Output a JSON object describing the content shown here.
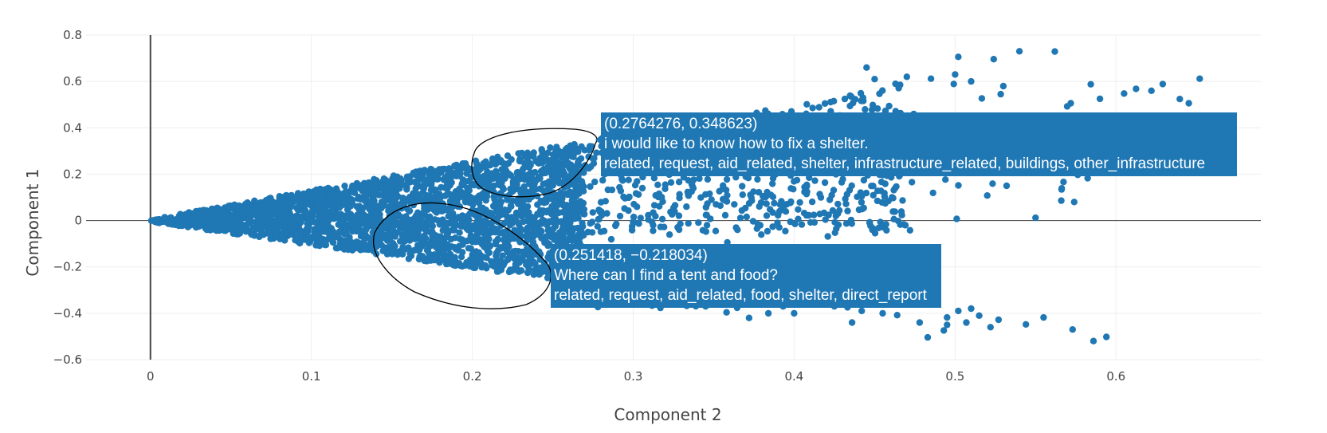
{
  "chart_data": {
    "type": "scatter",
    "xlabel": "Component 2",
    "ylabel": "Component 1",
    "xlim": [
      -0.04,
      0.69
    ],
    "ylim": [
      -0.6,
      0.8
    ],
    "x_ticks": [
      0,
      0.1,
      0.2,
      0.3,
      0.4,
      0.5,
      0.6
    ],
    "x_tick_labels": [
      "0",
      "0.1",
      "0.2",
      "0.3",
      "0.4",
      "0.5",
      "0.6"
    ],
    "y_ticks": [
      -0.6,
      -0.4,
      -0.2,
      0,
      0.2,
      0.4,
      0.6,
      0.8
    ],
    "y_tick_labels": [
      "−0.6",
      "−0.4",
      "−0.2",
      "0",
      "0.2",
      "0.4",
      "0.6",
      "0.8"
    ],
    "grid": true,
    "marker_color": "#1f77b4",
    "annotation_color": "#000000",
    "points_outlier_sample": [
      [
        0.502,
        0.706
      ],
      [
        0.524,
        0.696
      ],
      [
        0.54,
        0.73
      ],
      [
        0.562,
        0.729
      ],
      [
        0.652,
        0.612
      ],
      [
        0.605,
        0.548
      ],
      [
        0.622,
        0.56
      ],
      [
        0.59,
        0.525
      ],
      [
        0.53,
        0.58
      ],
      [
        0.5,
        0.63
      ],
      [
        0.485,
        0.612
      ],
      [
        0.51,
        0.6
      ],
      [
        0.47,
        0.62
      ],
      [
        0.45,
        0.61
      ],
      [
        0.463,
        0.59
      ],
      [
        0.445,
        0.66
      ],
      [
        0.566,
        0.086
      ],
      [
        0.574,
        0.08
      ],
      [
        0.55,
        0.012
      ],
      [
        0.501,
        0.007
      ],
      [
        0.472,
        -0.042
      ],
      [
        0.52,
        0.108
      ],
      [
        0.532,
        0.15
      ],
      [
        0.594,
        -0.502
      ],
      [
        0.586,
        -0.52
      ],
      [
        0.573,
        -0.47
      ],
      [
        0.555,
        -0.418
      ],
      [
        0.544,
        -0.448
      ],
      [
        0.522,
        -0.46
      ],
      [
        0.527,
        -0.428
      ],
      [
        0.515,
        -0.41
      ],
      [
        0.507,
        -0.44
      ],
      [
        0.495,
        -0.418
      ],
      [
        0.495,
        -0.45
      ],
      [
        0.493,
        -0.474
      ],
      [
        0.483,
        -0.504
      ],
      [
        0.478,
        -0.44
      ],
      [
        0.464,
        -0.408
      ],
      [
        0.455,
        -0.4
      ],
      [
        0.442,
        -0.39
      ],
      [
        0.436,
        -0.44
      ],
      [
        0.425,
        -0.37
      ],
      [
        0.4,
        -0.4
      ],
      [
        0.384,
        -0.4
      ],
      [
        0.372,
        -0.42
      ],
      [
        0.358,
        -0.396
      ],
      [
        0.502,
        -0.39
      ],
      [
        0.51,
        -0.38
      ]
    ],
    "hover_labels": [
      {
        "coords": "(0.2764276, 0.348623)",
        "message": "i would like to know how to fix a shelter.",
        "categories": "related, request, aid_related, shelter, infrastructure_related, buildings, other_infrastructure",
        "x": 0.2764276,
        "y": 0.348623
      },
      {
        "coords": "(0.251418, −0.218034)",
        "message": "Where can I find a tent and food?",
        "categories": "related, request, aid_related, food, shelter, direct_report",
        "x": 0.251418,
        "y": -0.218034
      }
    ]
  }
}
